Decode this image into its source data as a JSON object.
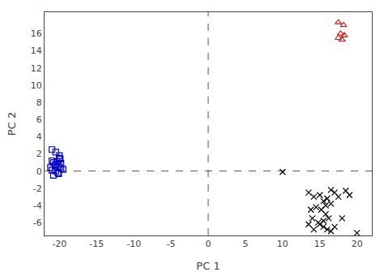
{
  "chart_data": {
    "type": "scatter",
    "xlabel": "PC 1",
    "ylabel": "PC 2",
    "xlim": [
      -22,
      22
    ],
    "ylim": [
      -7.5,
      18.5
    ],
    "xticks": [
      -20,
      -15,
      -10,
      -5,
      0,
      5,
      10,
      15,
      20
    ],
    "yticks": [
      -6,
      -4,
      -2,
      0,
      2,
      4,
      6,
      8,
      10,
      12,
      14,
      16
    ],
    "grid": false,
    "series": [
      {
        "color": "#0000cc",
        "marker": "square-open",
        "x": [
          -21,
          -20.5,
          -20,
          -21,
          -20.8,
          -20.5,
          -20.2,
          -20.0,
          -19.8,
          -21.0,
          -20.5,
          -20.2,
          -20.8,
          -19.5,
          -20.0,
          -21.2,
          -20.3,
          -19.8,
          -20.6,
          -20.1,
          -19.9
        ],
        "y": [
          2.5,
          2.2,
          1.5,
          1.2,
          1.0,
          0.8,
          0.7,
          0.5,
          0.3,
          0.1,
          0.0,
          -0.2,
          -0.5,
          0.2,
          1.8,
          0.4,
          1.1,
          0.9,
          0.6,
          -0.3,
          1.4
        ]
      },
      {
        "color": "#cc2222",
        "marker": "triangle-up-open",
        "x": [
          17.5,
          18.2,
          17.8,
          18.3,
          17.5,
          18.0
        ],
        "y": [
          17.3,
          17.0,
          16.0,
          15.8,
          15.5,
          15.3
        ]
      },
      {
        "color": "#000000",
        "marker": "x-thin-open",
        "x": [
          13.5,
          14.2,
          15.0,
          15.5,
          16.0,
          16.5,
          17.0,
          17.5,
          18.5,
          13.8,
          14.5,
          15.2,
          15.8,
          16.2,
          15.5,
          14.8,
          15.0,
          15.5,
          16.0,
          16.5,
          17.0,
          14.0,
          13.5,
          20.0,
          14.2,
          15.8,
          16.5,
          19.0,
          18.0,
          10.0
        ],
        "y": [
          -2.5,
          -3.0,
          -2.8,
          -3.5,
          -3.2,
          -2.2,
          -2.5,
          -3.0,
          -2.3,
          -4.5,
          -4.2,
          -4.5,
          -5.0,
          -5.5,
          -5.8,
          -6.0,
          -6.2,
          -6.5,
          -6.8,
          -7.0,
          -6.5,
          -5.5,
          -6.2,
          -7.2,
          -6.8,
          -4.0,
          -3.8,
          -2.8,
          -5.5,
          -0.1
        ]
      }
    ],
    "reference_lines": [
      {
        "y": 0,
        "color": "#555555",
        "line_style": "dash"
      },
      {
        "x": 0,
        "color": "#555555",
        "line_style": "dash"
      }
    ]
  }
}
